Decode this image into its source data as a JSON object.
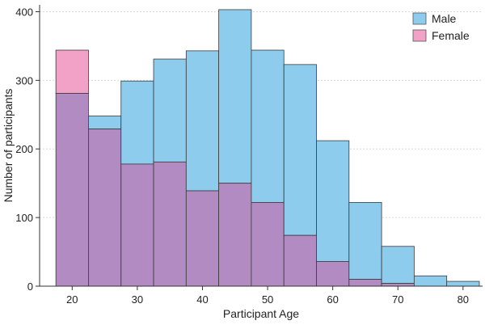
{
  "chart_data": {
    "type": "bar",
    "subtype": "overlaid-histogram",
    "xlabel": "Participant Age",
    "ylabel": "Number of participants",
    "xlim": [
      15,
      83
    ],
    "ylim": [
      0,
      410
    ],
    "x_ticks": [
      20,
      30,
      40,
      50,
      60,
      70,
      80
    ],
    "y_ticks": [
      0,
      100,
      200,
      300,
      400
    ],
    "bin_edges": [
      17.5,
      22.5,
      27.5,
      32.5,
      37.5,
      42.5,
      47.5,
      52.5,
      57.5,
      62.5,
      67.5,
      72.5,
      77.5,
      82.5
    ],
    "grid": "horizontal-dashed",
    "legend_position": "top-right",
    "series": [
      {
        "name": "Male",
        "color": "#8ECCEE",
        "values": [
          281,
          248,
          299,
          331,
          343,
          403,
          344,
          323,
          212,
          122,
          58,
          15,
          7
        ]
      },
      {
        "name": "Female",
        "color": "#F2A2C7",
        "values": [
          344,
          229,
          178,
          181,
          139,
          150,
          122,
          74,
          36,
          10,
          4,
          0,
          0
        ]
      }
    ],
    "overlap_color": "#B18BC1"
  }
}
